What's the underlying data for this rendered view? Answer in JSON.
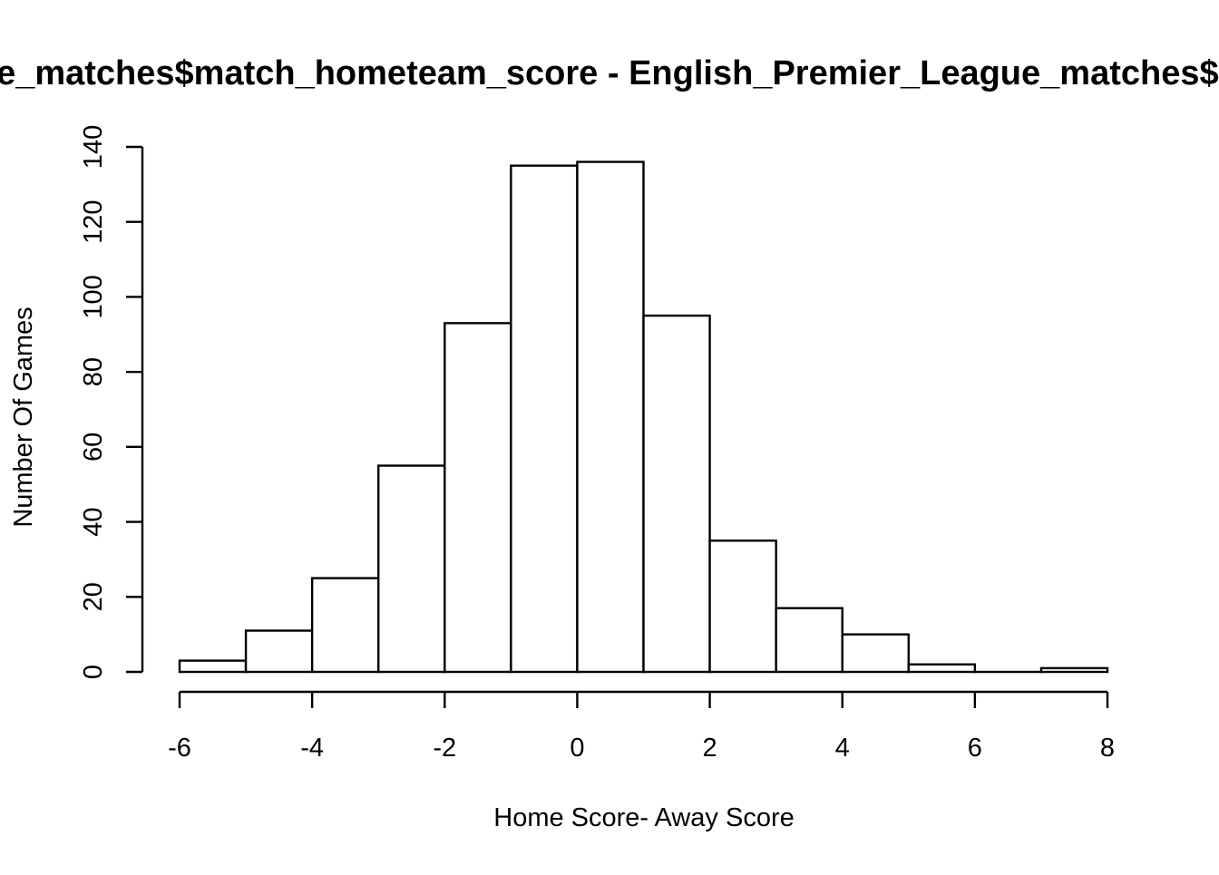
{
  "chart_data": {
    "type": "bar",
    "title": "English_Premier_League_matches$match_hometeam_score - English_Premier_League_matches$match_awayteam_score",
    "xlabel": "Home Score- Away Score",
    "ylabel": "Number Of Games",
    "bin_edges": [
      -6,
      -5,
      -4,
      -3,
      -2,
      -1,
      0,
      1,
      2,
      3,
      4,
      5,
      6,
      7,
      8
    ],
    "values": [
      3,
      11,
      25,
      55,
      93,
      135,
      136,
      95,
      35,
      17,
      10,
      2,
      0,
      1
    ],
    "xlim": [
      -6,
      8
    ],
    "ylim": [
      0,
      140
    ],
    "x_ticks": [
      "-6",
      "-4",
      "-2",
      "0",
      "2",
      "4",
      "6",
      "8"
    ],
    "y_ticks": [
      "0",
      "20",
      "40",
      "60",
      "80",
      "100",
      "120",
      "140"
    ],
    "grid": false,
    "legend": "none"
  }
}
